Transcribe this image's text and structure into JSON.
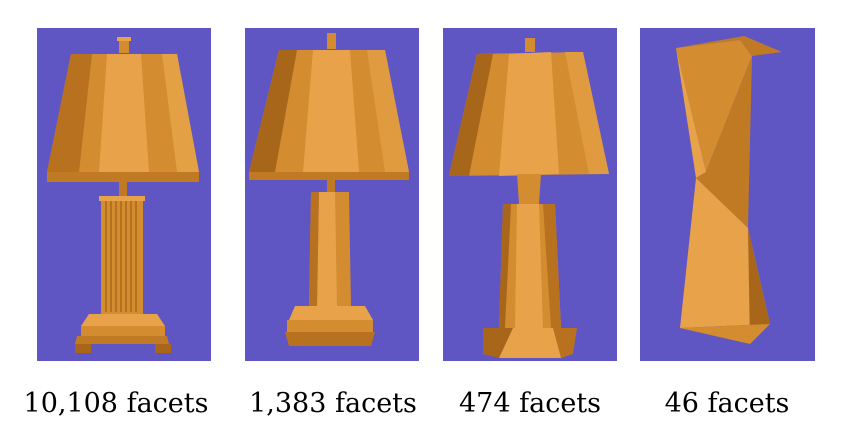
{
  "panels": [
    {
      "caption": "10,108 facets"
    },
    {
      "caption": "1,383 facets"
    },
    {
      "caption": "474 facets"
    },
    {
      "caption": "46 facets"
    }
  ],
  "colors": {
    "background": "#5f56c4",
    "lamp_light": "#e8a24a",
    "lamp_mid": "#d38c30",
    "lamp_dark": "#a8661a"
  }
}
